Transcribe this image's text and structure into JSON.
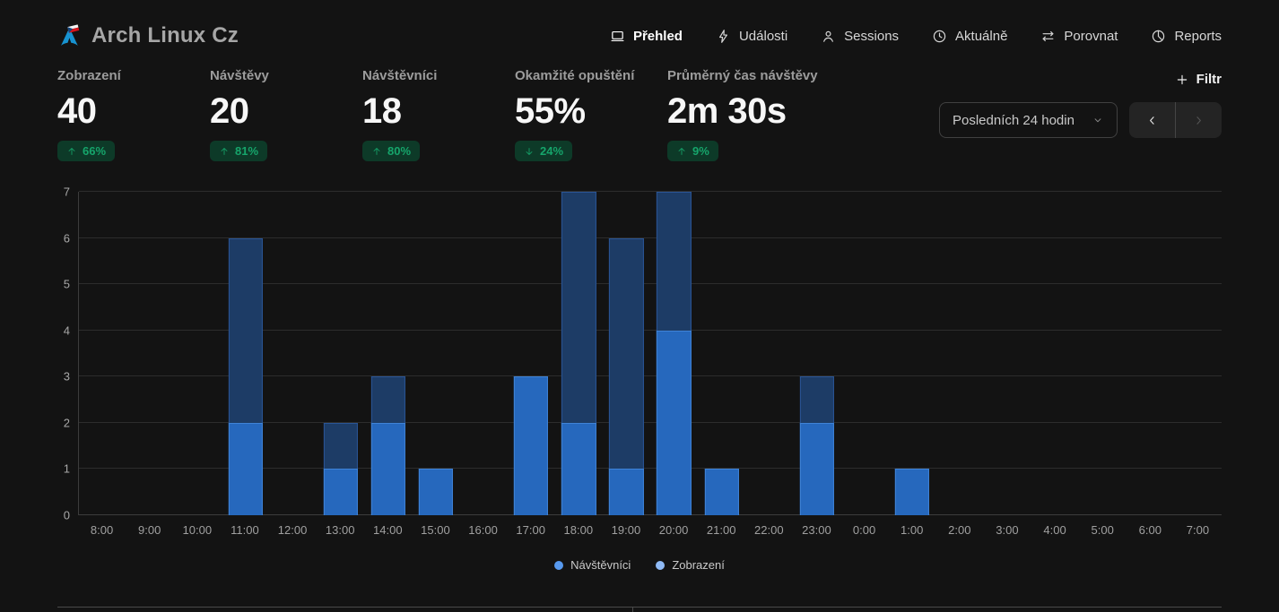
{
  "header": {
    "site_title": "Arch Linux Cz",
    "nav": [
      {
        "key": "prehled",
        "label": "Přehled",
        "icon": "monitor-icon",
        "active": true
      },
      {
        "key": "udalosti",
        "label": "Události",
        "icon": "lightning-icon",
        "active": false
      },
      {
        "key": "sessions",
        "label": "Sessions",
        "icon": "user-icon",
        "active": false
      },
      {
        "key": "aktualne",
        "label": "Aktuálně",
        "icon": "clock-icon",
        "active": false
      },
      {
        "key": "porovnat",
        "label": "Porovnat",
        "icon": "compare-arrows-icon",
        "active": false
      },
      {
        "key": "reports",
        "label": "Reports",
        "icon": "pie-chart-icon",
        "active": false
      }
    ]
  },
  "metrics": [
    {
      "key": "zobrazeni",
      "label": "Zobrazení",
      "value": "40",
      "change": "66%",
      "direction": "up"
    },
    {
      "key": "navstevy",
      "label": "Návštěvy",
      "value": "20",
      "change": "81%",
      "direction": "up"
    },
    {
      "key": "navstevnici",
      "label": "Návštěvníci",
      "value": "18",
      "change": "80%",
      "direction": "up"
    },
    {
      "key": "okamzite-opusteni",
      "label": "Okamžité opuštění",
      "value": "55%",
      "change": "24%",
      "direction": "down"
    },
    {
      "key": "prumerny-cas-navstevy",
      "label": "Průměrný čas návštěvy",
      "value": "2m 30s",
      "change": "9%",
      "direction": "up"
    }
  ],
  "controls": {
    "filter_label": "Filtr",
    "date_range": "Posledních 24 hodin",
    "prev_enabled": true,
    "next_enabled": false
  },
  "chart_data": {
    "type": "bar",
    "title": "",
    "xlabel": "",
    "ylabel": "",
    "x": [
      "8:00",
      "9:00",
      "10:00",
      "11:00",
      "12:00",
      "13:00",
      "14:00",
      "15:00",
      "16:00",
      "17:00",
      "18:00",
      "19:00",
      "20:00",
      "21:00",
      "22:00",
      "23:00",
      "0:00",
      "1:00",
      "2:00",
      "3:00",
      "4:00",
      "5:00",
      "6:00",
      "7:00"
    ],
    "series": [
      {
        "name": "Zobrazení",
        "bar_color": "#1d3c66",
        "values": [
          0,
          0,
          0,
          6,
          0,
          2,
          3,
          1,
          0,
          3,
          7,
          6,
          7,
          1,
          0,
          3,
          0,
          1,
          0,
          0,
          0,
          0,
          0,
          0
        ]
      },
      {
        "name": "Návštěvníci",
        "bar_color": "#2668bd",
        "values": [
          0,
          0,
          0,
          2,
          0,
          1,
          2,
          1,
          0,
          3,
          2,
          1,
          4,
          1,
          0,
          2,
          0,
          1,
          0,
          0,
          0,
          0,
          0,
          0
        ]
      }
    ],
    "ylim": [
      0,
      7
    ],
    "yticks": [
      0,
      1,
      2,
      3,
      4,
      5,
      6,
      7
    ],
    "grid": true,
    "legend_position": "bottom",
    "legend": [
      {
        "label": "Návštěvníci",
        "color": "#5799ef"
      },
      {
        "label": "Zobrazení",
        "color": "#8fbaf5"
      }
    ]
  },
  "colors": {
    "background": "#131313",
    "text_primary": "#f7f7f7",
    "text_muted": "#9c9c9c",
    "badge_bg": "#0d3a28",
    "badge_text": "#16a56b",
    "visitors_bar": "#2668bd",
    "views_bar": "#1d3c66",
    "logo_blue": "#1793d1"
  }
}
